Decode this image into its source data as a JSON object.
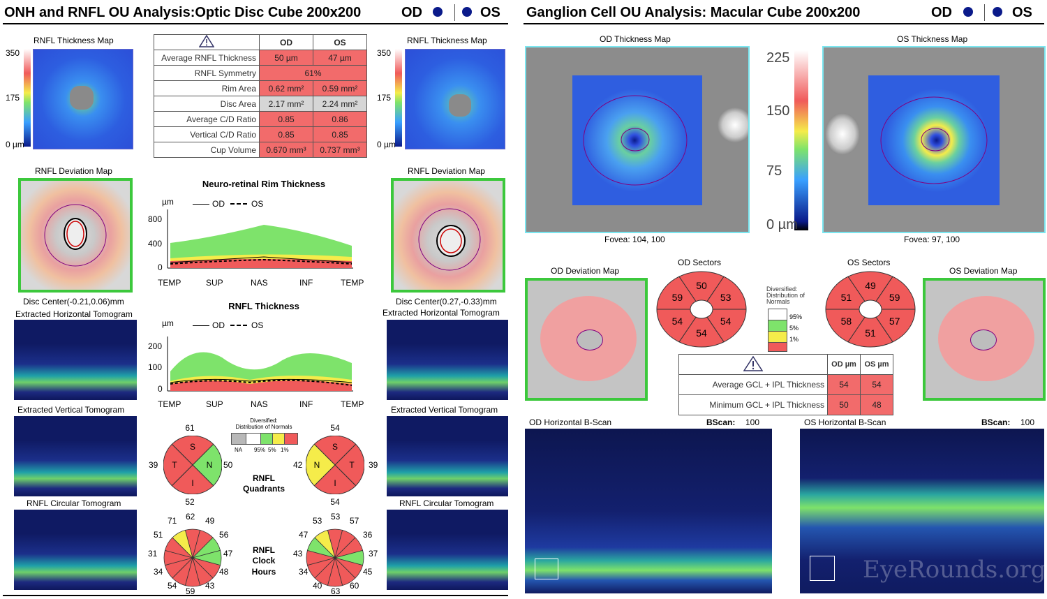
{
  "left": {
    "title": "ONH and RNFL OU Analysis:Optic Disc Cube 200x200",
    "od": "OD",
    "os": "OS",
    "od_map_title": "RNFL Thickness Map",
    "os_map_title": "RNFL Thickness Map",
    "scale_350": "350",
    "scale_175": "175",
    "scale_0": "0 µm",
    "table": {
      "head_od": "OD",
      "head_os": "OS",
      "rows": [
        {
          "label": "Average RNFL Thickness",
          "od": "50 µm",
          "os": "47 µm"
        },
        {
          "label": "RNFL Symmetry",
          "both": "61%"
        },
        {
          "label": "Rim Area",
          "od": "0.62 mm²",
          "os": "0.59 mm²"
        },
        {
          "label": "Disc Area",
          "od": "2.17 mm²",
          "os": "2.24 mm²"
        },
        {
          "label": "Average C/D Ratio",
          "od": "0.85",
          "os": "0.86"
        },
        {
          "label": "Vertical C/D Ratio",
          "od": "0.85",
          "os": "0.85"
        },
        {
          "label": "Cup Volume",
          "od": "0.670 mm³",
          "os": "0.737 mm³"
        }
      ]
    },
    "od_dev_title": "RNFL Deviation Map",
    "os_dev_title": "RNFL Deviation Map",
    "od_disc_center": "Disc Center(-0.21,0.06)mm",
    "os_disc_center": "Disc Center(0.27,-0.33)mm",
    "od_htomo": "Extracted Horizontal Tomogram",
    "os_htomo": "Extracted Horizontal Tomogram",
    "od_vtomo": "Extracted Vertical Tomogram",
    "os_vtomo": "Extracted Vertical Tomogram",
    "od_ctomo": "RNFL Circular Tomogram",
    "os_ctomo": "RNFL Circular Tomogram",
    "rim_chart": {
      "title": "Neuro-retinal Rim Thickness",
      "unit": "µm",
      "legend_od": "OD",
      "legend_os": "OS",
      "ticks": [
        "800",
        "400",
        "0"
      ],
      "xlabels": [
        "TEMP",
        "SUP",
        "NAS",
        "INF",
        "TEMP"
      ]
    },
    "rnfl_chart": {
      "title": "RNFL Thickness",
      "unit": "µm",
      "legend_od": "OD",
      "legend_os": "OS",
      "ticks": [
        "200",
        "100",
        "0"
      ],
      "xlabels": [
        "TEMP",
        "SUP",
        "NAS",
        "INF",
        "TEMP"
      ]
    },
    "quad_legend_title": "Diversified:",
    "quad_legend_sub": "Distribution of Normals",
    "quad_legend_labels": [
      "NA",
      "95%",
      "5%",
      "1%"
    ],
    "quadrants": {
      "label": "RNFL",
      "label2": "Quadrants",
      "od": {
        "S": "61",
        "T": "39",
        "N": "50",
        "I": "52"
      },
      "os": {
        "S": "54",
        "N": "42",
        "T": "39",
        "I": "54"
      }
    },
    "clock": {
      "label1": "RNFL",
      "label2": "Clock",
      "label3": "Hours",
      "od": [
        "62",
        "49",
        "56",
        "47",
        "48",
        "43",
        "59",
        "54",
        "34",
        "31",
        "51",
        "71"
      ],
      "os": [
        "53",
        "57",
        "36",
        "37",
        "45",
        "60",
        "63",
        "40",
        "34",
        "43",
        "47",
        "53"
      ]
    }
  },
  "right": {
    "title": "Ganglion Cell OU Analysis: Macular Cube 200x200",
    "od": "OD",
    "os": "OS",
    "od_map_title": "OD Thickness Map",
    "os_map_title": "OS Thickness Map",
    "scale_225": "225",
    "scale_150": "150",
    "scale_75": "75",
    "scale_0": "0 µm",
    "od_fovea": "Fovea: 104, 100",
    "os_fovea": "Fovea: 97, 100",
    "od_dev_title": "OD Deviation Map",
    "os_dev_title": "OS Deviation Map",
    "od_sectors_title": "OD Sectors",
    "os_sectors_title": "OS Sectors",
    "od_sectors": [
      "50",
      "53",
      "54",
      "54",
      "54",
      "59"
    ],
    "os_sectors": [
      "49",
      "59",
      "57",
      "51",
      "58",
      "51"
    ],
    "legend_title": "Diversified: Distribution of Normals",
    "legend_labels": [
      "95%",
      "5%",
      "1%"
    ],
    "table": {
      "head_od": "OD µm",
      "head_os": "OS µm",
      "rows": [
        {
          "label": "Average GCL + IPL Thickness",
          "od": "54",
          "os": "54"
        },
        {
          "label": "Minimum GCL + IPL Thickness",
          "od": "50",
          "os": "48"
        }
      ]
    },
    "od_bscan_title": "OD Horizontal B-Scan",
    "os_bscan_title": "OS Horizontal B-Scan",
    "bscan_label": "BScan:",
    "bscan_value": "100",
    "watermark": "EyeRounds.org"
  },
  "colors": {
    "red": "#f05a5a",
    "yellow": "#f5ec4a",
    "green": "#7ee36b",
    "grey": "#b8b8b8",
    "navy": "#0a1a8a",
    "frame_green": "#3cc83c",
    "frame_cyan": "#7ae6f0"
  }
}
